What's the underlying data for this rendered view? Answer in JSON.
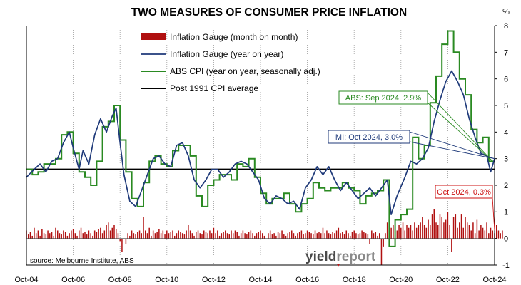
{
  "chart_data": {
    "type": "bar+line",
    "title": "TWO MEASURES OF CONSUMER PRICE INFLATION",
    "y_unit": "%",
    "ylim": [
      -1,
      8
    ],
    "yticks": [
      "-1",
      "0",
      "1",
      "2",
      "3",
      "4",
      "5",
      "6",
      "7",
      "8"
    ],
    "xlim": [
      "Oct-04",
      "Oct-24"
    ],
    "xticks": [
      "Oct-04",
      "Oct-06",
      "Oct-08",
      "Oct-10",
      "Oct-12",
      "Oct-14",
      "Oct-16",
      "Oct-18",
      "Oct-20",
      "Oct-22",
      "Oct-24"
    ],
    "grid": "vertical dotted",
    "legend_position": "top-center",
    "colors": {
      "bars": "#b01010",
      "mi_yoy": "#1f3a7a",
      "abs_cpi": "#2a8a22",
      "average": "#000000",
      "note_green": "#2a8a22",
      "note_blue": "#1f3a7a",
      "note_red": "#cc1111"
    },
    "series": [
      {
        "name": "Inflation Gauge (month on month)",
        "kind": "bar",
        "color": "#b01010",
        "x_start": "Oct-04",
        "x_step": "1 month",
        "values": [
          0.3,
          0.15,
          0.25,
          0.1,
          0.4,
          0.2,
          0.3,
          0.1,
          0.35,
          0.2,
          0.15,
          0.3,
          0.2,
          0.25,
          0.1,
          0.4,
          0.3,
          0.2,
          0.15,
          0.3,
          0.25,
          0.1,
          0.2,
          0.3,
          0.35,
          0.2,
          0.1,
          0.3,
          0.4,
          0.2,
          0.25,
          0.15,
          0.3,
          0.2,
          0.1,
          0.3,
          0.25,
          0.35,
          0.4,
          0.2,
          0.3,
          0.5,
          0.6,
          0.3,
          0.4,
          0.5,
          0.35,
          0.2,
          -0.1,
          -0.5,
          0.0,
          -0.2,
          0.2,
          0.1,
          0.3,
          0.2,
          0.15,
          0.25,
          0.3,
          0.2,
          0.8,
          0.3,
          0.2,
          0.4,
          0.1,
          0.3,
          0.2,
          0.25,
          0.35,
          0.2,
          0.3,
          0.15,
          0.3,
          0.2,
          0.25,
          0.3,
          0.1,
          0.2,
          0.3,
          0.25,
          0.2,
          0.15,
          0.3,
          0.5,
          0.3,
          0.2,
          0.1,
          0.25,
          0.3,
          0.2,
          0.15,
          0.3,
          0.25,
          0.2,
          0.3,
          0.2,
          0.4,
          0.2,
          0.3,
          0.1,
          0.2,
          0.25,
          0.3,
          0.2,
          0.15,
          0.3,
          0.2,
          0.3,
          0.25,
          0.1,
          0.2,
          0.3,
          0.2,
          0.15,
          0.25,
          0.3,
          0.2,
          0.1,
          0.2,
          0.25,
          0.3,
          0.2,
          0.1,
          0.0,
          0.2,
          0.3,
          0.15,
          0.2,
          0.1,
          0.25,
          0.2,
          0.3,
          0.15,
          0.1,
          0.2,
          0.25,
          0.3,
          0.2,
          0.1,
          0.2,
          0.25,
          0.3,
          0.15,
          0.2,
          0.3,
          0.25,
          0.2,
          0.15,
          0.3,
          0.2,
          0.25,
          0.2,
          0.4,
          0.2,
          0.3,
          0.2,
          0.15,
          0.25,
          0.2,
          0.3,
          0.4,
          0.2,
          0.25,
          0.15,
          0.3,
          0.2,
          0.1,
          0.25,
          0.3,
          0.2,
          0.15,
          0.2,
          0.3,
          0.25,
          0.2,
          0.15,
          -0.2,
          0.3,
          0.2,
          0.25,
          0.1,
          0.2,
          -1.0,
          -0.3,
          0.2,
          0.6,
          0.3,
          0.4,
          0.5,
          0.4,
          0.3,
          0.5,
          0.4,
          0.6,
          0.3,
          0.5,
          0.4,
          0.5,
          0.3,
          0.6,
          0.4,
          0.5,
          0.6,
          0.8,
          0.5,
          0.4,
          0.7,
          0.5,
          0.9,
          1.1,
          0.6,
          0.5,
          0.9,
          0.8,
          0.6,
          0.7,
          1.0,
          0.5,
          -0.5,
          0.8,
          0.9,
          0.4,
          0.6,
          0.9,
          0.4,
          0.8,
          0.6,
          0.5,
          0.3,
          0.6,
          0.2,
          0.7,
          0.3,
          0.5,
          0.4,
          0.3,
          0.6,
          0.2,
          0.4,
          0.3,
          0.2,
          0.5,
          0.3,
          0.2,
          0.3
        ]
      },
      {
        "name": "Inflation Gauge (year on year)",
        "kind": "line",
        "color": "#1f3a7a",
        "points": [
          [
            "2004-10",
            2.3
          ],
          [
            "2005-02",
            2.6
          ],
          [
            "2005-05",
            2.8
          ],
          [
            "2005-08",
            2.5
          ],
          [
            "2005-11",
            2.9
          ],
          [
            "2006-02",
            3.0
          ],
          [
            "2006-05",
            3.6
          ],
          [
            "2006-08",
            4.0
          ],
          [
            "2006-10",
            3.4
          ],
          [
            "2007-01",
            2.6
          ],
          [
            "2007-03",
            3.3
          ],
          [
            "2007-06",
            2.8
          ],
          [
            "2007-09",
            3.9
          ],
          [
            "2007-12",
            4.5
          ],
          [
            "2008-03",
            4.0
          ],
          [
            "2008-06",
            4.6
          ],
          [
            "2008-08",
            4.9
          ],
          [
            "2008-10",
            3.6
          ],
          [
            "2008-12",
            2.4
          ],
          [
            "2009-03",
            1.4
          ],
          [
            "2009-06",
            1.2
          ],
          [
            "2009-09",
            1.8
          ],
          [
            "2009-12",
            2.4
          ],
          [
            "2010-03",
            3.0
          ],
          [
            "2010-06",
            3.1
          ],
          [
            "2010-09",
            2.8
          ],
          [
            "2010-12",
            2.7
          ],
          [
            "2011-03",
            3.5
          ],
          [
            "2011-06",
            3.6
          ],
          [
            "2011-09",
            3.1
          ],
          [
            "2011-12",
            2.2
          ],
          [
            "2012-03",
            1.9
          ],
          [
            "2012-06",
            2.2
          ],
          [
            "2012-09",
            2.6
          ],
          [
            "2012-12",
            2.6
          ],
          [
            "2013-03",
            2.3
          ],
          [
            "2013-06",
            2.5
          ],
          [
            "2013-09",
            2.8
          ],
          [
            "2013-12",
            2.9
          ],
          [
            "2014-03",
            2.8
          ],
          [
            "2014-06",
            2.5
          ],
          [
            "2014-09",
            2.2
          ],
          [
            "2014-12",
            1.5
          ],
          [
            "2015-03",
            1.3
          ],
          [
            "2015-06",
            1.6
          ],
          [
            "2015-09",
            1.5
          ],
          [
            "2015-12",
            1.3
          ],
          [
            "2016-03",
            1.4
          ],
          [
            "2016-06",
            1.1
          ],
          [
            "2016-09",
            1.9
          ],
          [
            "2016-12",
            2.2
          ],
          [
            "2017-03",
            2.7
          ],
          [
            "2017-06",
            2.4
          ],
          [
            "2017-09",
            2.7
          ],
          [
            "2017-12",
            2.2
          ],
          [
            "2018-03",
            1.8
          ],
          [
            "2018-06",
            2.1
          ],
          [
            "2018-09",
            1.8
          ],
          [
            "2018-12",
            1.5
          ],
          [
            "2019-03",
            1.7
          ],
          [
            "2019-06",
            1.9
          ],
          [
            "2019-09",
            1.6
          ],
          [
            "2019-12",
            1.9
          ],
          [
            "2020-03",
            2.2
          ],
          [
            "2020-05",
            0.9
          ],
          [
            "2020-08",
            1.6
          ],
          [
            "2020-12",
            2.3
          ],
          [
            "2021-03",
            2.9
          ],
          [
            "2021-06",
            2.8
          ],
          [
            "2021-09",
            3.0
          ],
          [
            "2021-12",
            3.4
          ],
          [
            "2022-03",
            4.4
          ],
          [
            "2022-06",
            5.2
          ],
          [
            "2022-09",
            5.9
          ],
          [
            "2022-12",
            6.3
          ],
          [
            "2023-03",
            5.9
          ],
          [
            "2023-06",
            5.4
          ],
          [
            "2023-09",
            4.5
          ],
          [
            "2023-12",
            3.8
          ],
          [
            "2024-03",
            3.2
          ],
          [
            "2024-06",
            3.1
          ],
          [
            "2024-08",
            2.5
          ],
          [
            "2024-10",
            3.0
          ]
        ]
      },
      {
        "name": "ABS CPI (year on year, seasonally adj.)",
        "kind": "step",
        "color": "#2a8a22",
        "points": [
          [
            "2004-10",
            2.6
          ],
          [
            "2005-01",
            2.4
          ],
          [
            "2005-04",
            2.5
          ],
          [
            "2005-07",
            2.8
          ],
          [
            "2005-10",
            2.8
          ],
          [
            "2006-01",
            3.0
          ],
          [
            "2006-04",
            3.9
          ],
          [
            "2006-07",
            4.0
          ],
          [
            "2006-10",
            3.2
          ],
          [
            "2007-01",
            2.5
          ],
          [
            "2007-04",
            2.3
          ],
          [
            "2007-07",
            2.0
          ],
          [
            "2007-10",
            2.9
          ],
          [
            "2008-01",
            4.2
          ],
          [
            "2008-04",
            4.4
          ],
          [
            "2008-07",
            5.0
          ],
          [
            "2008-10",
            3.7
          ],
          [
            "2009-01",
            2.5
          ],
          [
            "2009-04",
            1.5
          ],
          [
            "2009-07",
            1.2
          ],
          [
            "2009-10",
            2.1
          ],
          [
            "2010-01",
            2.9
          ],
          [
            "2010-04",
            3.1
          ],
          [
            "2010-07",
            2.8
          ],
          [
            "2010-10",
            2.7
          ],
          [
            "2011-01",
            3.3
          ],
          [
            "2011-04",
            3.5
          ],
          [
            "2011-07",
            3.5
          ],
          [
            "2011-10",
            3.1
          ],
          [
            "2012-01",
            1.6
          ],
          [
            "2012-04",
            1.2
          ],
          [
            "2012-07",
            2.0
          ],
          [
            "2012-10",
            2.2
          ],
          [
            "2013-01",
            2.4
          ],
          [
            "2013-04",
            2.4
          ],
          [
            "2013-07",
            2.2
          ],
          [
            "2013-10",
            2.8
          ],
          [
            "2014-01",
            2.7
          ],
          [
            "2014-04",
            3.0
          ],
          [
            "2014-07",
            2.3
          ],
          [
            "2014-10",
            1.7
          ],
          [
            "2015-01",
            1.3
          ],
          [
            "2015-04",
            1.5
          ],
          [
            "2015-07",
            1.5
          ],
          [
            "2015-10",
            1.7
          ],
          [
            "2016-01",
            1.3
          ],
          [
            "2016-04",
            1.0
          ],
          [
            "2016-07",
            1.3
          ],
          [
            "2016-10",
            1.5
          ],
          [
            "2017-01",
            2.1
          ],
          [
            "2017-04",
            1.9
          ],
          [
            "2017-07",
            1.8
          ],
          [
            "2017-10",
            1.9
          ],
          [
            "2018-01",
            1.9
          ],
          [
            "2018-04",
            2.1
          ],
          [
            "2018-07",
            1.9
          ],
          [
            "2018-10",
            1.8
          ],
          [
            "2019-01",
            1.3
          ],
          [
            "2019-04",
            1.6
          ],
          [
            "2019-07",
            1.7
          ],
          [
            "2019-10",
            1.8
          ],
          [
            "2020-01",
            2.2
          ],
          [
            "2020-04",
            -0.3
          ],
          [
            "2020-07",
            0.7
          ],
          [
            "2020-10",
            0.9
          ],
          [
            "2021-01",
            1.1
          ],
          [
            "2021-04",
            3.8
          ],
          [
            "2021-07",
            3.0
          ],
          [
            "2021-10",
            3.5
          ],
          [
            "2022-01",
            5.1
          ],
          [
            "2022-04",
            6.1
          ],
          [
            "2022-07",
            7.3
          ],
          [
            "2022-10",
            7.8
          ],
          [
            "2023-01",
            7.0
          ],
          [
            "2023-04",
            6.0
          ],
          [
            "2023-07",
            5.4
          ],
          [
            "2023-10",
            4.1
          ],
          [
            "2024-01",
            3.6
          ],
          [
            "2024-04",
            3.8
          ],
          [
            "2024-07",
            2.9
          ],
          [
            "2024-10",
            2.9
          ]
        ]
      },
      {
        "name": "Post 1991 CPI average",
        "kind": "hline",
        "color": "#000000",
        "value": 2.6
      }
    ],
    "annotations": [
      {
        "text": "ABS: Sep 2024, 2.9%",
        "color": "#2a8a22",
        "x": "2024-09",
        "y": 2.9
      },
      {
        "text": "MI: Oct 2024, 3.0%",
        "color": "#1f3a7a",
        "x": "2024-10",
        "y": 3.0
      },
      {
        "text": "Oct 2024, 0.3%",
        "color": "#cc1111",
        "x": "2024-10",
        "y": 0.3
      }
    ],
    "source": "source: Melbourne Institute, ABS",
    "brand": {
      "part1": "yield",
      "part2": "report"
    }
  }
}
